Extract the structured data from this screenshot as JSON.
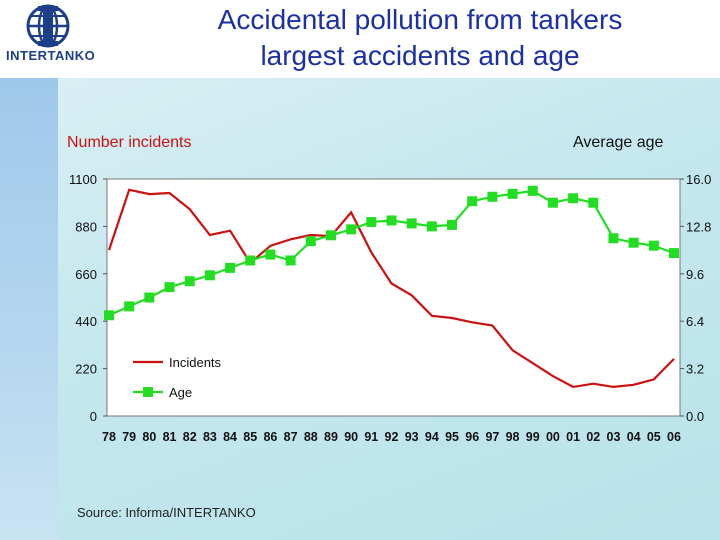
{
  "title_lines": [
    "Accidental pollution from tankers",
    "largest accidents and age"
  ],
  "logo": {
    "text": "INTERTANKO",
    "icon": "globe-icon"
  },
  "left_axis_title": "Number incidents",
  "right_axis_title": "Average age",
  "source": "Source: Informa/INTERTANKO",
  "colors": {
    "incidents": "#cc1111",
    "age": "#22dd22",
    "title": "#1a2fa8"
  },
  "chart_data": {
    "type": "line",
    "categories": [
      "78",
      "79",
      "80",
      "81",
      "82",
      "83",
      "84",
      "85",
      "86",
      "87",
      "88",
      "89",
      "90",
      "91",
      "92",
      "93",
      "94",
      "95",
      "96",
      "97",
      "98",
      "99",
      "00",
      "01",
      "02",
      "03",
      "04",
      "05",
      "06"
    ],
    "y_left": {
      "ticks": [
        "0",
        "220",
        "440",
        "660",
        "880",
        "1100"
      ],
      "ylim": [
        0,
        1100
      ]
    },
    "y_right": {
      "ticks": [
        "0.0",
        "3.2",
        "6.4",
        "9.6",
        "12.8",
        "16.0"
      ],
      "ylim": [
        0,
        16
      ]
    },
    "series": [
      {
        "name": "Incidents",
        "axis": "left",
        "values": [
          770,
          1050,
          1030,
          1035,
          960,
          840,
          860,
          710,
          790,
          820,
          840,
          835,
          945,
          760,
          615,
          560,
          465,
          455,
          435,
          420,
          305,
          245,
          185,
          135,
          150,
          135,
          145,
          170,
          265
        ]
      },
      {
        "name": "Age",
        "axis": "right",
        "values": [
          6.8,
          7.4,
          8.0,
          8.7,
          9.1,
          9.5,
          10.0,
          10.5,
          10.9,
          10.5,
          11.8,
          12.2,
          12.6,
          13.1,
          13.2,
          13.0,
          12.8,
          12.9,
          14.5,
          14.8,
          15.0,
          15.2,
          14.4,
          14.7,
          14.4,
          12.0,
          11.7,
          11.5,
          11.0
        ]
      }
    ],
    "legend": {
      "position": "bottom-left",
      "entries": [
        "Incidents",
        "Age"
      ]
    },
    "grid": false
  }
}
